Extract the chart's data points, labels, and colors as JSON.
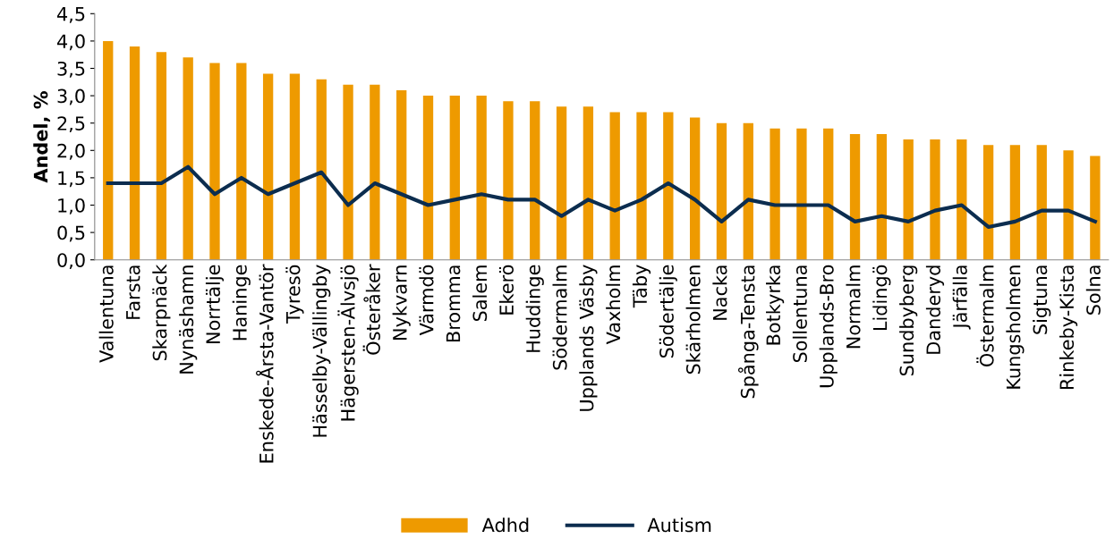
{
  "chart_data": {
    "type": "bar",
    "ylabel": "Andel, %",
    "categories": [
      "Vallentuna",
      "Farsta",
      "Skarpnäck",
      "Nynäshamn",
      "Norrtälje",
      "Haninge",
      "Enskede-Årsta-Vantör",
      "Tyresö",
      "Hässelby-Vällingby",
      "Hägersten-Älvsjö",
      "Österåker",
      "Nykvarn",
      "Värmdö",
      "Bromma",
      "Salem",
      "Ekerö",
      "Huddinge",
      "Södermalm",
      "Upplands Väsby",
      "Vaxholm",
      "Täby",
      "Södertälje",
      "Skärholmen",
      "Nacka",
      "Spånga-Tensta",
      "Botkyrka",
      "Sollentuna",
      "Upplands-Bro",
      "Normalm",
      "Lidingö",
      "Sundbyberg",
      "Danderyd",
      "Järfälla",
      "Östermalm",
      "Kungsholmen",
      "Sigtuna",
      "Rinkeby-Kista",
      "Solna"
    ],
    "series": [
      {
        "name": "Adhd",
        "color": "#ee9a00",
        "values": [
          4.0,
          3.9,
          3.8,
          3.7,
          3.6,
          3.6,
          3.4,
          3.4,
          3.3,
          3.2,
          3.2,
          3.1,
          3.0,
          3.0,
          3.0,
          2.9,
          2.9,
          2.8,
          2.8,
          2.7,
          2.7,
          2.7,
          2.6,
          2.5,
          2.5,
          2.4,
          2.4,
          2.4,
          2.3,
          2.3,
          2.2,
          2.2,
          2.2,
          2.1,
          2.1,
          2.1,
          2.0,
          1.9
        ]
      },
      {
        "name": "Autism",
        "type": "line",
        "color": "#0c2d4f",
        "values": [
          1.4,
          1.4,
          1.4,
          1.7,
          1.2,
          1.5,
          1.2,
          1.4,
          1.6,
          1.0,
          1.4,
          1.2,
          1.0,
          1.1,
          1.2,
          1.1,
          1.1,
          0.8,
          1.1,
          0.9,
          1.1,
          1.4,
          1.1,
          0.7,
          1.1,
          1.0,
          1.0,
          1.0,
          0.7,
          0.8,
          0.7,
          0.9,
          1.0,
          0.6,
          0.7,
          0.9,
          0.9,
          0.7
        ]
      }
    ],
    "ylim": [
      0,
      4.5
    ],
    "yticks": [
      {
        "value": 0,
        "label": "0,0"
      },
      {
        "value": 0.5,
        "label": "0,5"
      },
      {
        "value": 1.0,
        "label": "1,0"
      },
      {
        "value": 1.5,
        "label": "1,5"
      },
      {
        "value": 2.0,
        "label": "2,0"
      },
      {
        "value": 2.5,
        "label": "2,5"
      },
      {
        "value": 3.0,
        "label": "3,0"
      },
      {
        "value": 3.5,
        "label": "3,5"
      },
      {
        "value": 4.0,
        "label": "4,0"
      },
      {
        "value": 4.5,
        "label": "4,5"
      }
    ],
    "grid": false,
    "legend": "bottom",
    "marker": "none",
    "line_style": "solid"
  }
}
